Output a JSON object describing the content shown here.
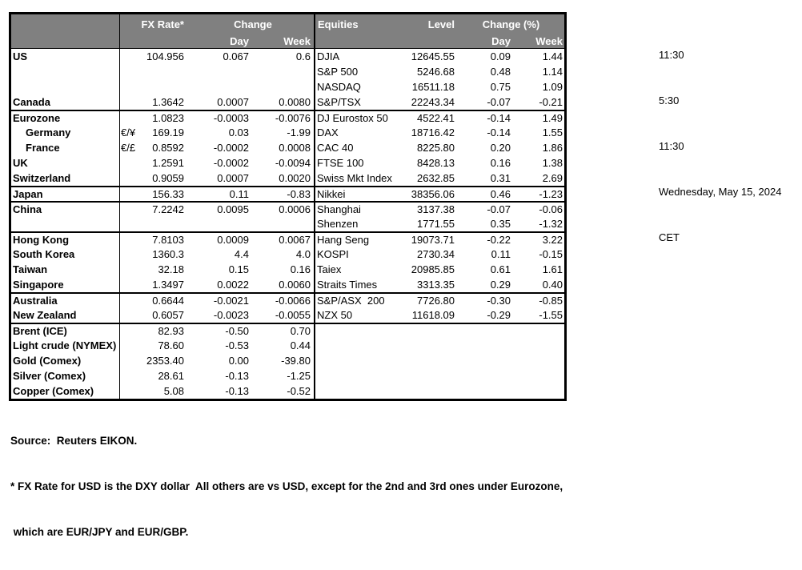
{
  "colors": {
    "header_bg": "#808080",
    "header_text": "#ffffff",
    "border": "#000000",
    "text": "#000000",
    "page_bg": "#ffffff"
  },
  "table": {
    "headers": {
      "fx_rate": "FX Rate*",
      "fx_change": "Change",
      "fx_day": "Day",
      "fx_week": "Week",
      "equities": "Equities",
      "level": "Level",
      "eq_change_pct": "Change (%)",
      "eq_day": "Day",
      "eq_week": "Week"
    },
    "rows": [
      {
        "name": "US",
        "pair": "",
        "rate": "104.956",
        "day": "0.067",
        "week": "0.6",
        "equity": "DJIA",
        "level": "12645.55",
        "eq_day": "0.09",
        "eq_week": "1.44",
        "section_start": false,
        "indent": false
      },
      {
        "name": "",
        "pair": "",
        "rate": "",
        "day": "",
        "week": "",
        "equity": "S&P 500",
        "level": "5246.68",
        "eq_day": "0.48",
        "eq_week": "1.14",
        "section_start": false,
        "indent": false
      },
      {
        "name": "",
        "pair": "",
        "rate": "",
        "day": "",
        "week": "",
        "equity": "NASDAQ",
        "level": "16511.18",
        "eq_day": "0.75",
        "eq_week": "1.09",
        "section_start": false,
        "indent": false
      },
      {
        "name": "Canada",
        "pair": "",
        "rate": "1.3642",
        "day": "0.0007",
        "week": "0.0080",
        "equity": "S&P/TSX",
        "level": "22243.34",
        "eq_day": "-0.07",
        "eq_week": "-0.21",
        "section_start": false,
        "indent": false
      },
      {
        "name": "Eurozone",
        "pair": "",
        "rate": "1.0823",
        "day": "-0.0003",
        "week": "-0.0076",
        "equity": "DJ Eurostox 50",
        "level": "4522.41",
        "eq_day": "-0.14",
        "eq_week": "1.49",
        "section_start": true,
        "indent": false
      },
      {
        "name": "Germany",
        "pair": "€/¥",
        "rate": "169.19",
        "day": "0.03",
        "week": "-1.99",
        "equity": "DAX",
        "level": "18716.42",
        "eq_day": "-0.14",
        "eq_week": "1.55",
        "section_start": false,
        "indent": true
      },
      {
        "name": "France",
        "pair": "€/£",
        "rate": "0.8592",
        "day": "-0.0002",
        "week": "0.0008",
        "equity": "CAC 40",
        "level": "8225.80",
        "eq_day": "0.20",
        "eq_week": "1.86",
        "section_start": false,
        "indent": true
      },
      {
        "name": "UK",
        "pair": "",
        "rate": "1.2591",
        "day": "-0.0002",
        "week": "-0.0094",
        "equity": "FTSE 100",
        "level": "8428.13",
        "eq_day": "0.16",
        "eq_week": "1.38",
        "section_start": false,
        "indent": false
      },
      {
        "name": "Switzerland",
        "pair": "",
        "rate": "0.9059",
        "day": "0.0007",
        "week": "0.0020",
        "equity": "Swiss Mkt Index",
        "level": "2632.85",
        "eq_day": "0.31",
        "eq_week": "2.69",
        "section_start": false,
        "indent": false
      },
      {
        "name": "Japan",
        "pair": "",
        "rate": "156.33",
        "day": "0.11",
        "week": "-0.83",
        "equity": "Nikkei",
        "level": "38356.06",
        "eq_day": "0.46",
        "eq_week": "-1.23",
        "section_start": true,
        "indent": false
      },
      {
        "name": "China",
        "pair": "",
        "rate": "7.2242",
        "day": "0.0095",
        "week": "0.0006",
        "equity": "Shanghai",
        "level": "3137.38",
        "eq_day": "-0.07",
        "eq_week": "-0.06",
        "section_start": true,
        "indent": false
      },
      {
        "name": "",
        "pair": "",
        "rate": "",
        "day": "",
        "week": "",
        "equity": "Shenzen",
        "level": "1771.55",
        "eq_day": "0.35",
        "eq_week": "-1.32",
        "section_start": false,
        "indent": false
      },
      {
        "name": "Hong Kong",
        "pair": "",
        "rate": "7.8103",
        "day": "0.0009",
        "week": "0.0067",
        "equity": "Hang Seng",
        "level": "19073.71",
        "eq_day": "-0.22",
        "eq_week": "3.22",
        "section_start": true,
        "indent": false
      },
      {
        "name": "South Korea",
        "pair": "",
        "rate": "1360.3",
        "day": "4.4",
        "week": "4.0",
        "equity": "KOSPI",
        "level": "2730.34",
        "eq_day": "0.11",
        "eq_week": "-0.15",
        "section_start": false,
        "indent": false
      },
      {
        "name": "Taiwan",
        "pair": "",
        "rate": "32.18",
        "day": "0.15",
        "week": "0.16",
        "equity": "Taiex",
        "level": "20985.85",
        "eq_day": "0.61",
        "eq_week": "1.61",
        "section_start": false,
        "indent": false
      },
      {
        "name": "Singapore",
        "pair": "",
        "rate": "1.3497",
        "day": "0.0022",
        "week": "0.0060",
        "equity": "Straits Times",
        "level": "3313.35",
        "eq_day": "0.29",
        "eq_week": "0.40",
        "section_start": false,
        "indent": false
      },
      {
        "name": "Australia",
        "pair": "",
        "rate": "0.6644",
        "day": "-0.0021",
        "week": "-0.0066",
        "equity": "S&P/ASX  200",
        "level": "7726.80",
        "eq_day": "-0.30",
        "eq_week": "-0.85",
        "section_start": true,
        "indent": false
      },
      {
        "name": "New Zealand",
        "pair": "",
        "rate": "0.6057",
        "day": "-0.0023",
        "week": "-0.0055",
        "equity": "NZX 50",
        "level": "11618.09",
        "eq_day": "-0.29",
        "eq_week": "-1.55",
        "section_start": false,
        "indent": false
      },
      {
        "name": "Brent (ICE)",
        "pair": "",
        "rate": "82.93",
        "day": "-0.50",
        "week": "0.70",
        "equity": "",
        "level": "",
        "eq_day": "",
        "eq_week": "",
        "section_start": true,
        "indent": false
      },
      {
        "name": "Light crude (NYMEX)",
        "pair": "",
        "rate": "78.60",
        "day": "-0.53",
        "week": "0.44",
        "equity": "",
        "level": "",
        "eq_day": "",
        "eq_week": "",
        "section_start": false,
        "indent": false
      },
      {
        "name": "Gold (Comex)",
        "pair": "",
        "rate": "2353.40",
        "day": "0.00",
        "week": "-39.80",
        "equity": "",
        "level": "",
        "eq_day": "",
        "eq_week": "",
        "section_start": false,
        "indent": false
      },
      {
        "name": "Silver (Comex)",
        "pair": "",
        "rate": "28.61",
        "day": "-0.13",
        "week": "-1.25",
        "equity": "",
        "level": "",
        "eq_day": "",
        "eq_week": "",
        "section_start": false,
        "indent": false
      },
      {
        "name": "Copper (Comex)",
        "pair": "",
        "rate": "5.08",
        "day": "-0.13",
        "week": "-0.52",
        "equity": "",
        "level": "",
        "eq_day": "",
        "eq_week": "",
        "section_start": false,
        "indent": false
      }
    ]
  },
  "times_panel": {
    "lines": [
      "11:30",
      "5:30",
      "11:30",
      "Wednesday, May 15, 2024",
      "CET"
    ]
  },
  "footer": {
    "source": "Source:  Reuters EIKON.",
    "footnote_line1": "* FX Rate for USD is the DXY dollar  All others are vs USD, except for the 2nd and 3rd ones under Eurozone,",
    "footnote_line2": " which are EUR/JPY and EUR/GBP."
  }
}
